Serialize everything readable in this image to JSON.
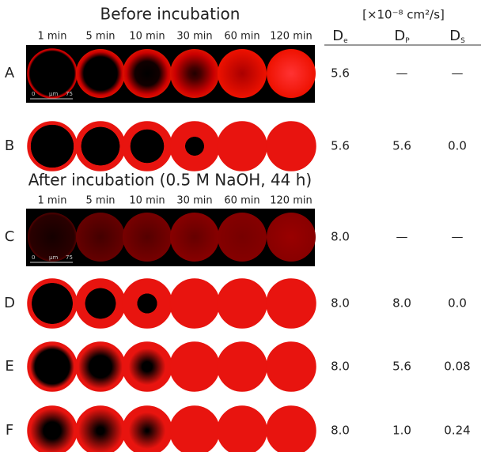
{
  "header": {
    "units": "[×10⁻⁸ cm²/s]",
    "columns": [
      {
        "base": "D",
        "sub": "e"
      },
      {
        "base": "D",
        "sub": "P"
      },
      {
        "base": "D",
        "sub": "S"
      }
    ]
  },
  "sections": [
    {
      "title": "Before incubation",
      "times": [
        "1 min",
        "5 min",
        "10 min",
        "30 min",
        "60 min",
        "120 min"
      ]
    },
    {
      "title": "After incubation (0.5 M NaOH, 44 h)",
      "times": [
        "1 min",
        "5 min",
        "10 min",
        "30 min",
        "60 min",
        "120 min"
      ]
    }
  ],
  "rows": [
    {
      "label": "A",
      "values": [
        "5.6",
        "—",
        "—"
      ],
      "scale_bar": {
        "start": "0",
        "unit": "μm",
        "end": "75"
      }
    },
    {
      "label": "B",
      "values": [
        "5.6",
        "5.6",
        "0.0"
      ]
    },
    {
      "label": "C",
      "values": [
        "8.0",
        "—",
        "—"
      ],
      "scale_bar": {
        "start": "0",
        "unit": "μm",
        "end": "75"
      }
    },
    {
      "label": "D",
      "values": [
        "8.0",
        "8.0",
        "0.0"
      ]
    },
    {
      "label": "E",
      "values": [
        "8.0",
        "5.6",
        "0.08"
      ]
    },
    {
      "label": "F",
      "values": [
        "8.0",
        "1.0",
        "0.24"
      ]
    }
  ]
}
